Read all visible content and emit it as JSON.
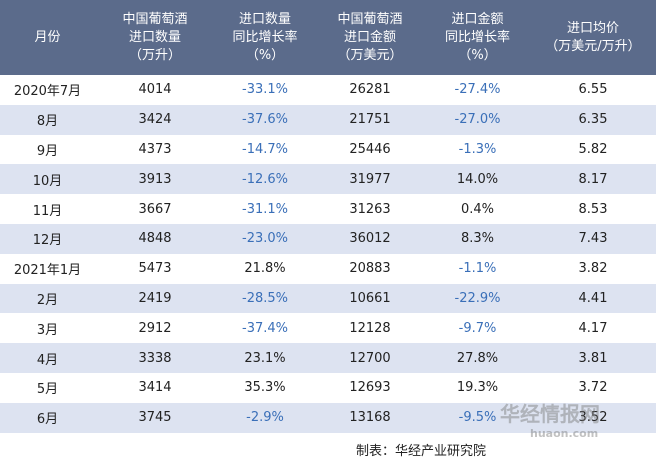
{
  "table": {
    "header": [
      [
        "月份"
      ],
      [
        "中国葡萄酒",
        "进口数量",
        "（万升）"
      ],
      [
        "进口数量",
        "同比增长率",
        "（%）"
      ],
      [
        "中国葡萄酒",
        "进口金额",
        "（万美元）"
      ],
      [
        "进口金额",
        "同比增长率",
        "（%）"
      ],
      [
        "进口均价",
        "（万美元/万升）"
      ]
    ],
    "rows": [
      [
        "2020年7月",
        "4014",
        "-33.1%",
        "26281",
        "-27.4%",
        "6.55"
      ],
      [
        "8月",
        "3424",
        "-37.6%",
        "21751",
        "-27.0%",
        "6.35"
      ],
      [
        "9月",
        "4373",
        "-14.7%",
        "25446",
        "-1.3%",
        "5.82"
      ],
      [
        "10月",
        "3913",
        "-12.6%",
        "31977",
        "14.0%",
        "8.17"
      ],
      [
        "11月",
        "3667",
        "-31.1%",
        "31263",
        "0.4%",
        "8.53"
      ],
      [
        "12月",
        "4848",
        "-23.0%",
        "36012",
        "8.3%",
        "7.43"
      ],
      [
        "2021年1月",
        "5473",
        "21.8%",
        "20883",
        "-1.1%",
        "3.82"
      ],
      [
        "2月",
        "2419",
        "-28.5%",
        "10661",
        "-22.9%",
        "4.41"
      ],
      [
        "3月",
        "2912",
        "-37.4%",
        "12128",
        "-9.7%",
        "4.17"
      ],
      [
        "4月",
        "3338",
        "23.1%",
        "12700",
        "27.8%",
        "3.81"
      ],
      [
        "5月",
        "3414",
        "35.3%",
        "12693",
        "19.3%",
        "3.72"
      ],
      [
        "6月",
        "3745",
        "-2.9%",
        "13168",
        "-9.5%",
        "3.52"
      ]
    ]
  },
  "footer": "制表：华经产业研究院",
  "watermark": {
    "name": "华经情报网",
    "url": "huaon.com"
  }
}
